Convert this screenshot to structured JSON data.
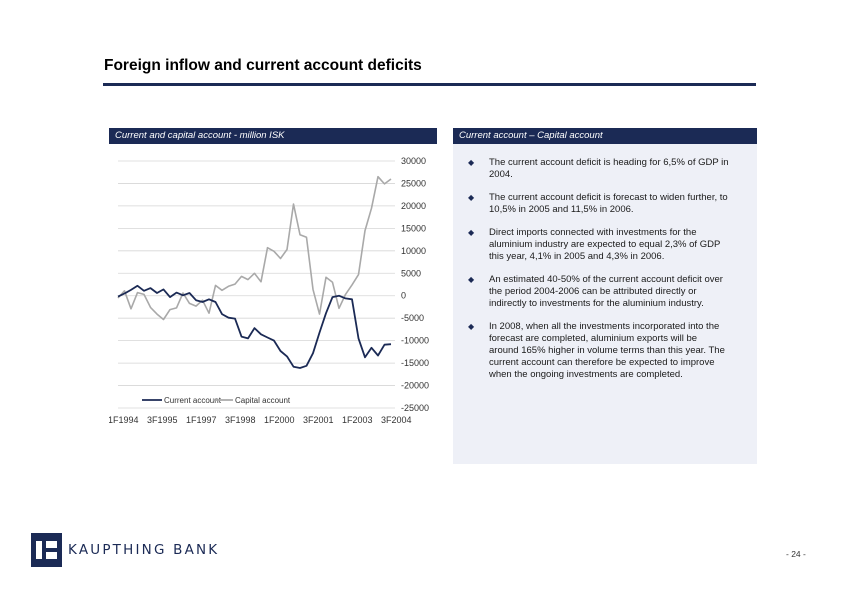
{
  "page": {
    "title": "Foreign inflow and current account deficits",
    "page_number": "- 24 -"
  },
  "left_panel": {
    "header": "Current and capital account - million ISK"
  },
  "right_panel": {
    "header": "Current account – Capital account",
    "bullets": [
      "The current account deficit is heading for 6,5% of GDP in 2004.",
      "The current account deficit is forecast to widen further, to 10,5% in 2005 and 11,5% in 2006.",
      "Direct imports connected with investments for the aluminium industry are expected to equal 2,3% of GDP this year, 4,1% in 2005 and 4,3% in 2006.",
      "An estimated 40-50% of the current account deficit over the period 2004-2006 can be attributed directly or indirectly to investments for the aluminium industry.",
      "In 2008, when all the investments incorporated into the forecast are completed, aluminium exports will be around 165% higher in volume terms than this year. The current account can therefore be expected to improve when the ongoing investments are completed."
    ],
    "bullet_icon": "diamond-icon"
  },
  "footer": {
    "logo_text": "KAUPTHING BANK"
  },
  "colors": {
    "navy": "#1b2a55",
    "panel_bg": "#eef0f7",
    "capital_series": "#a9a9a9",
    "current_series": "#1b2a55"
  },
  "chart_data": {
    "type": "line",
    "title": "Current and capital account - million ISK",
    "xlabel": "",
    "ylabel": "",
    "x_tick_labels": [
      "1F1994",
      "3F1995",
      "1F1997",
      "3F1998",
      "1F2000",
      "3F2001",
      "1F2003",
      "3F2004"
    ],
    "y_ticks": [
      30000,
      25000,
      20000,
      15000,
      10000,
      5000,
      0,
      -5000,
      -10000,
      -15000,
      -20000,
      -25000
    ],
    "y_tick_labels": [
      "30000",
      "25000",
      "20000",
      "15000",
      "10000",
      "5000",
      "0",
      "-5000",
      "-10000",
      "-15000",
      "-20000",
      "-25000"
    ],
    "ylim": [
      -25000,
      30000
    ],
    "y_axis_side": "right",
    "grid": true,
    "legend_position": "bottom-left",
    "x_count": 43,
    "x_tick_index": [
      0,
      6,
      12,
      18,
      24,
      30,
      36,
      42
    ],
    "series": [
      {
        "name": "Current account",
        "color": "#1b2a55",
        "values": [
          -200,
          500,
          1300,
          2200,
          1100,
          1700,
          600,
          1400,
          -300,
          700,
          100,
          600,
          -1000,
          -1400,
          -800,
          -1400,
          -4100,
          -4900,
          -5100,
          -9100,
          -9500,
          -7200,
          -8600,
          -9300,
          -10000,
          -12300,
          -13500,
          -15800,
          -16100,
          -15600,
          -12800,
          -8200,
          -3900,
          -300,
          0,
          -600,
          -800,
          -9500,
          -13700,
          -11600,
          -13300,
          -10900,
          -10800
        ]
      },
      {
        "name": "Capital account",
        "color": "#a9a9a9",
        "values": [
          -500,
          1100,
          -2900,
          700,
          300,
          -2600,
          -4100,
          -5300,
          -3100,
          -2700,
          600,
          -1700,
          -2300,
          -1000,
          -3900,
          2300,
          1200,
          2100,
          2600,
          4300,
          3600,
          5000,
          3100,
          10700,
          9900,
          8300,
          10300,
          20400,
          13600,
          13000,
          1400,
          -4100,
          4100,
          3000,
          -2800,
          300,
          2400,
          4700,
          14500,
          19500,
          26500,
          24900,
          26000
        ]
      }
    ]
  }
}
